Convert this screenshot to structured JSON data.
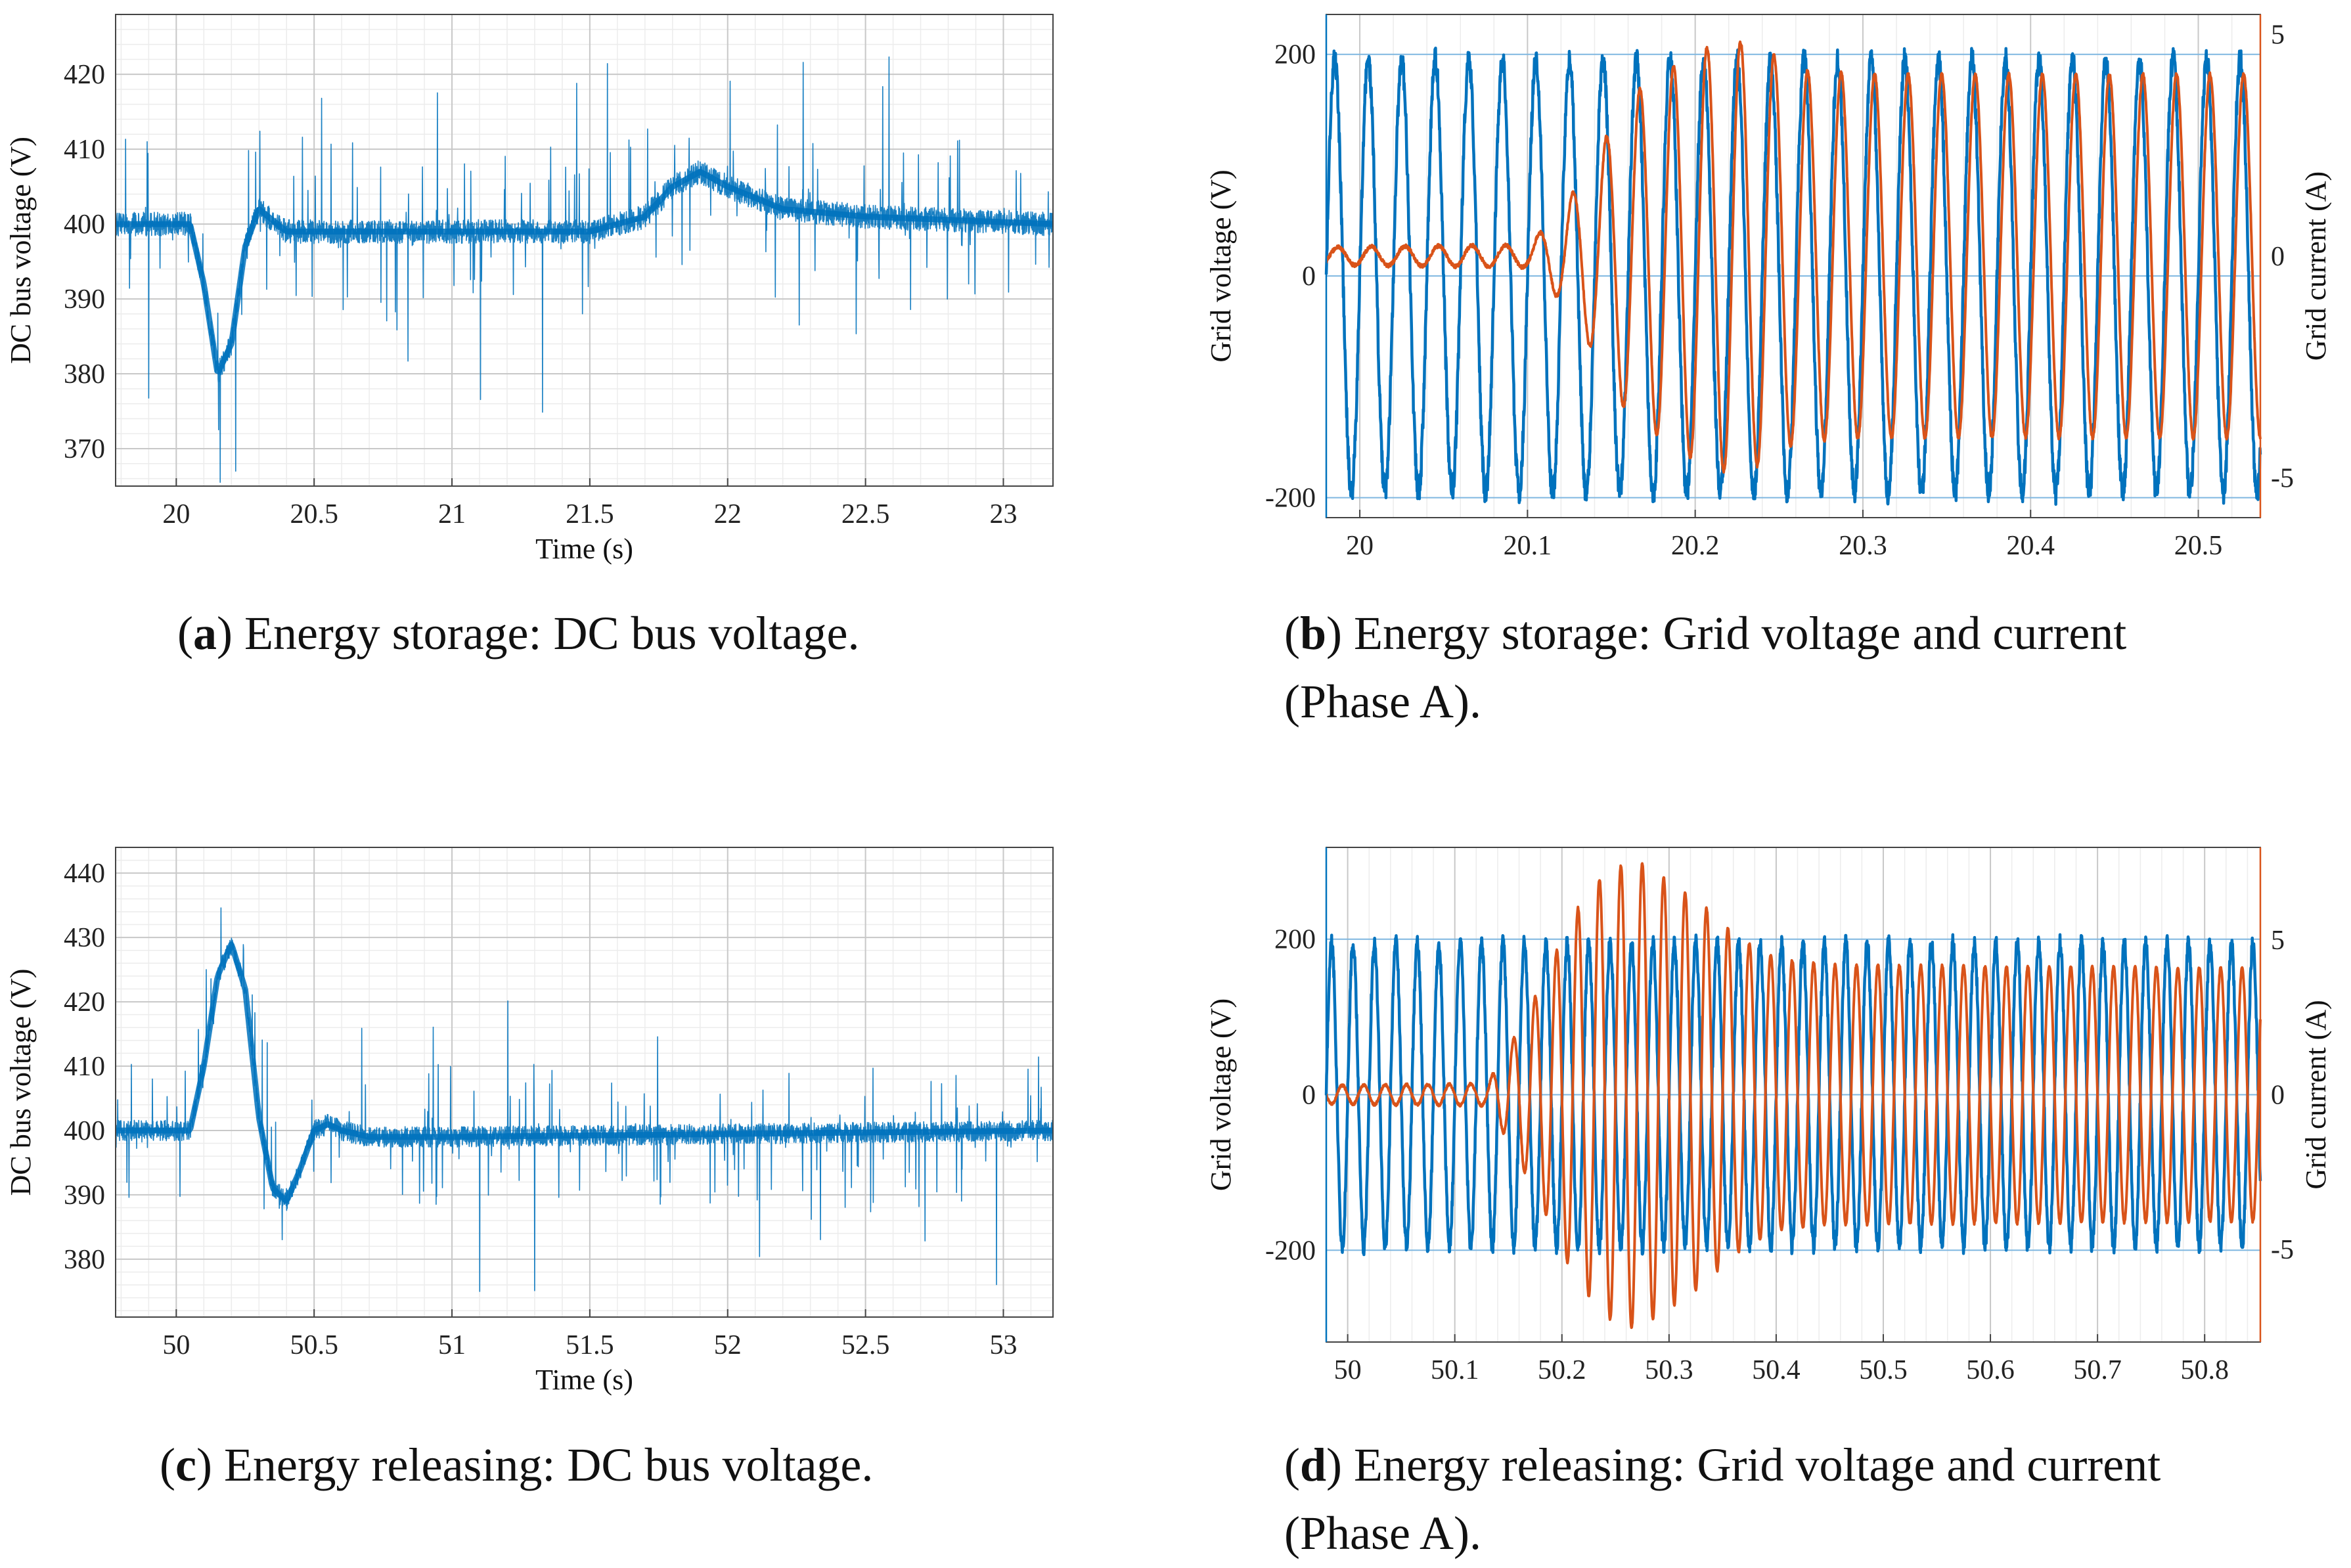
{
  "colors": {
    "voltage": "#0072BD",
    "current": "#D95319",
    "grid_major": "#c8c8c8",
    "grid_minor": "#ececec",
    "axis": "#222222"
  },
  "captions": {
    "a": {
      "letter": "a",
      "text": "Energy storage: DC bus voltage."
    },
    "b": {
      "letter": "b",
      "text_line1": "Energy storage: Grid voltage and current",
      "text_line2": "(Phase A)."
    },
    "c": {
      "letter": "c",
      "text": "Energy releasing: DC bus voltage."
    },
    "d": {
      "letter": "d",
      "text_line1": "Energy releasing: Grid voltage and current",
      "text_line2": "(Phase A)."
    }
  },
  "chart_data": [
    {
      "id": "a",
      "type": "line",
      "title": "Energy storage: DC bus voltage.",
      "xlabel": "Time (s)",
      "ylabel": "DC bus voltage (V)",
      "xlim": [
        19.78,
        23.18
      ],
      "ylim": [
        365,
        428
      ],
      "xticks": [
        20,
        20.5,
        21,
        21.5,
        22,
        22.5,
        23
      ],
      "xtick_labels": [
        "20",
        "20.5",
        "21",
        "21.5",
        "22",
        "22.5",
        "23"
      ],
      "yticks": [
        370,
        380,
        390,
        400,
        410,
        420
      ],
      "ytick_labels": [
        "370",
        "380",
        "390",
        "400",
        "410",
        "420"
      ],
      "series": [
        {
          "name": "DC bus voltage",
          "color": "voltage",
          "x": [
            19.78,
            20.05,
            20.1,
            20.15,
            20.2,
            20.25,
            20.3,
            20.4,
            20.6,
            21.0,
            21.5,
            21.7,
            21.8,
            21.9,
            22.0,
            22.2,
            22.5,
            23.18
          ],
          "values": [
            400,
            400,
            392,
            380,
            384,
            397,
            402,
            399,
            399,
            399,
            399,
            401,
            405,
            407,
            405,
            402,
            401,
            400
          ]
        }
      ]
    },
    {
      "id": "b",
      "type": "line",
      "title": "Energy storage: Grid voltage and current (Phase A).",
      "xlabel": "",
      "ylabel": "Grid voltage (V)",
      "y2label": "Grid current (A)",
      "xlim": [
        19.98,
        20.537
      ],
      "ylim": [
        -218,
        236
      ],
      "y2lim": [
        -5.9,
        5.45
      ],
      "xticks": [
        20,
        20.1,
        20.2,
        20.3,
        20.4,
        20.5
      ],
      "xtick_labels": [
        "20",
        "20.1",
        "20.2",
        "20.3",
        "20.4",
        "20.5"
      ],
      "yticks": [
        -200,
        0,
        200
      ],
      "ytick_labels": [
        "-200",
        "0",
        "200"
      ],
      "y2ticks": [
        -5,
        0,
        5
      ],
      "y2tick_labels": [
        "-5",
        "0",
        "5"
      ],
      "series": [
        {
          "name": "Grid voltage",
          "axis": "left",
          "color": "voltage",
          "waveform": "sine",
          "frequency_hz": 50,
          "x": [
            19.98,
            20.537
          ],
          "amplitude": [
            195,
            195
          ]
        },
        {
          "name": "Grid current",
          "axis": "right",
          "color": "current",
          "waveform": "sine",
          "frequency_hz": 50,
          "phase_shift_s": 0.002,
          "x": [
            19.98,
            20.1,
            20.12,
            20.14,
            20.16,
            20.2,
            20.22,
            20.24,
            20.26,
            20.3,
            20.537
          ],
          "amplitude": [
            0.2,
            0.25,
            1.0,
            2.2,
            3.6,
            4.6,
            4.9,
            4.7,
            4.2,
            4.1,
            4.1
          ]
        }
      ]
    },
    {
      "id": "c",
      "type": "line",
      "title": "Energy releasing: DC bus voltage.",
      "xlabel": "Time (s)",
      "ylabel": "DC bus voltage (V)",
      "xlim": [
        49.78,
        53.18
      ],
      "ylim": [
        371,
        444
      ],
      "xticks": [
        50,
        50.5,
        51,
        51.5,
        52,
        52.5,
        53
      ],
      "xtick_labels": [
        "50",
        "50.5",
        "51",
        "51.5",
        "52",
        "52.5",
        "53"
      ],
      "yticks": [
        380,
        390,
        400,
        410,
        420,
        430,
        440
      ],
      "ytick_labels": [
        "380",
        "390",
        "400",
        "410",
        "420",
        "430",
        "440"
      ],
      "series": [
        {
          "name": "DC bus voltage",
          "color": "voltage",
          "x": [
            49.78,
            50.05,
            50.1,
            50.15,
            50.2,
            50.25,
            50.3,
            50.35,
            50.4,
            50.45,
            50.5,
            50.55,
            50.6,
            50.7,
            51.0,
            53.18
          ],
          "values": [
            400,
            400,
            410,
            424,
            429,
            422,
            402,
            391,
            389,
            394,
            400,
            401,
            400,
            399,
            399,
            400
          ]
        }
      ]
    },
    {
      "id": "d",
      "type": "line",
      "title": "Energy releasing: Grid voltage and current (Phase A).",
      "xlabel": "",
      "ylabel": "Grid voltage (V)",
      "y2label": "Grid current (A)",
      "xlim": [
        49.98,
        50.852
      ],
      "ylim": [
        -318,
        318
      ],
      "y2lim": [
        -8.0,
        8.0
      ],
      "xticks": [
        50,
        50.1,
        50.2,
        50.3,
        50.4,
        50.5,
        50.6,
        50.7,
        50.8
      ],
      "xtick_labels": [
        "50",
        "50.1",
        "50.2",
        "50.3",
        "50.4",
        "50.5",
        "50.6",
        "50.7",
        "50.8"
      ],
      "yticks": [
        -200,
        0,
        200
      ],
      "ytick_labels": [
        "-200",
        "0",
        "200"
      ],
      "y2ticks": [
        -5,
        0,
        5
      ],
      "y2tick_labels": [
        "-5",
        "0",
        "5"
      ],
      "series": [
        {
          "name": "Grid voltage",
          "axis": "left",
          "color": "voltage",
          "waveform": "sine",
          "frequency_hz": 50,
          "x": [
            49.98,
            50.852
          ],
          "amplitude": [
            195,
            195
          ]
        },
        {
          "name": "Grid current",
          "axis": "right",
          "color": "current",
          "waveform": "sine",
          "frequency_hz": 50,
          "phase_shift_s": 0.01,
          "x": [
            49.98,
            50.13,
            50.15,
            50.18,
            50.21,
            50.24,
            50.27,
            50.3,
            50.33,
            50.36,
            50.4,
            50.45,
            50.852
          ],
          "amplitude": [
            0.3,
            0.35,
            1.5,
            3.5,
            5.8,
            7.2,
            7.6,
            6.9,
            6.2,
            5.2,
            4.4,
            4.2,
            4.1
          ]
        }
      ]
    }
  ]
}
